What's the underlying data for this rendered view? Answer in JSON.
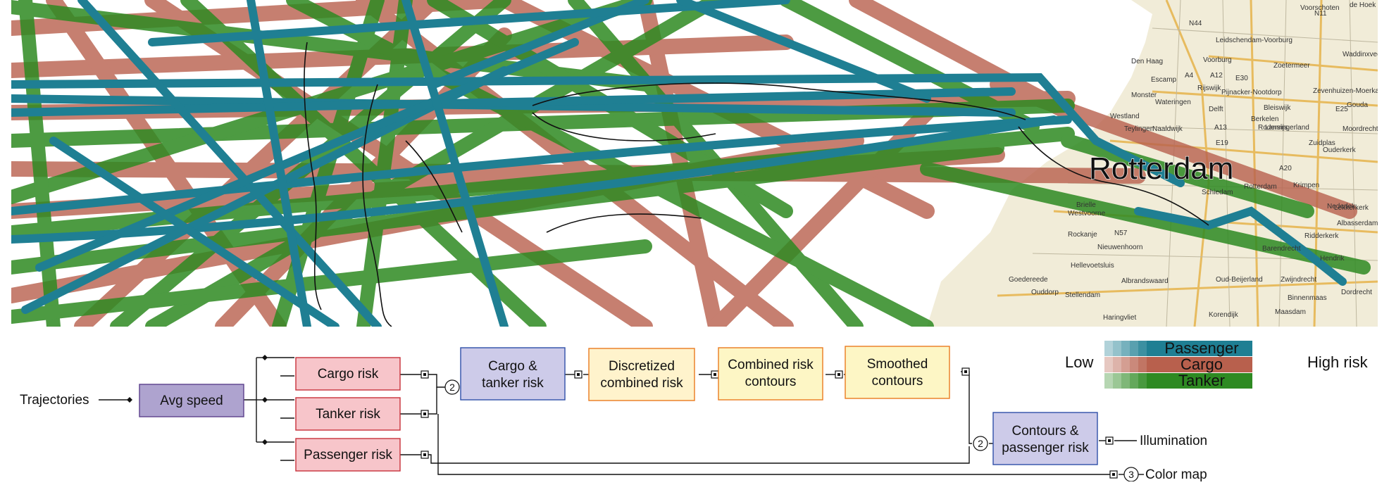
{
  "map": {
    "city_label": "Rotterdam",
    "places": [
      "Voorschoten",
      "N44",
      "N11",
      "de Hoek",
      "Leidschendam-Voorburg",
      "Den Haag",
      "Voorburg",
      "Zoetermeer",
      "Waddinxveen",
      "A4",
      "A12",
      "E30",
      "Escamp",
      "Rijswijk",
      "Pijnacker-Nootdorp",
      "Zevenhuizen-Moerkapelle",
      "Monster",
      "Wateringen",
      "Delft",
      "Bleiswijk",
      "E25",
      "Gouda",
      "Westland",
      "Berkelen",
      "Rodenrijs",
      "Lansingerland",
      "Moordrecht",
      "Teylingen",
      "Naaldwijk",
      "A13",
      "E19",
      "Zuidplas",
      "Ouderkerk",
      "Schiedam",
      "Rotterdam",
      "A20",
      "Krimpen",
      "Westvoorne",
      "Brielle",
      "Nederlek",
      "Lekkerkerk",
      "Rockanje",
      "N57",
      "Ridderkerk",
      "Albasserdam",
      "Nieuwenhoorn",
      "Barendrecht",
      "Hendrik",
      "Hellevoetsluis",
      "Zwijndrecht",
      "Goedereede",
      "Albrandswaard",
      "Oud-Beijerland",
      "Ouddorp",
      "Stellendam",
      "Binnenmaas",
      "Dordrecht",
      "Haringvliet",
      "Korendijk",
      "Maasdam"
    ]
  },
  "legend": {
    "low_label": "Low",
    "high_label": "High risk",
    "passenger_label": "Passenger",
    "cargo_label": "Cargo",
    "tanker_label": "Tanker"
  },
  "pipeline": {
    "input_label": "Trajectories",
    "avg_speed": "Avg speed",
    "cargo_risk": "Cargo risk",
    "tanker_risk": "Tanker risk",
    "passenger_risk": "Passenger risk",
    "cargo_tanker_risk": [
      "Cargo &",
      "tanker risk"
    ],
    "discretized": [
      "Discretized",
      "combined risk"
    ],
    "combined_contours": [
      "Combined risk",
      "contours"
    ],
    "smoothed": [
      "Smoothed",
      "contours"
    ],
    "contours_passenger": [
      "Contours &",
      "passenger risk"
    ],
    "illumination": "Illumination",
    "color_map": "Color map",
    "badge_2a": "2",
    "badge_2b": "2",
    "badge_3": "3"
  },
  "colors": {
    "passenger": "#1f7f93",
    "cargo": "#b8604d",
    "tanker": "#2e8a22",
    "node_purple": "#aea3cf",
    "node_pink": "#f7c5ca",
    "node_lavender": "#cdcbe9",
    "node_orange_fill": "#fff3cc",
    "node_yellow": "#fdf6c5"
  }
}
